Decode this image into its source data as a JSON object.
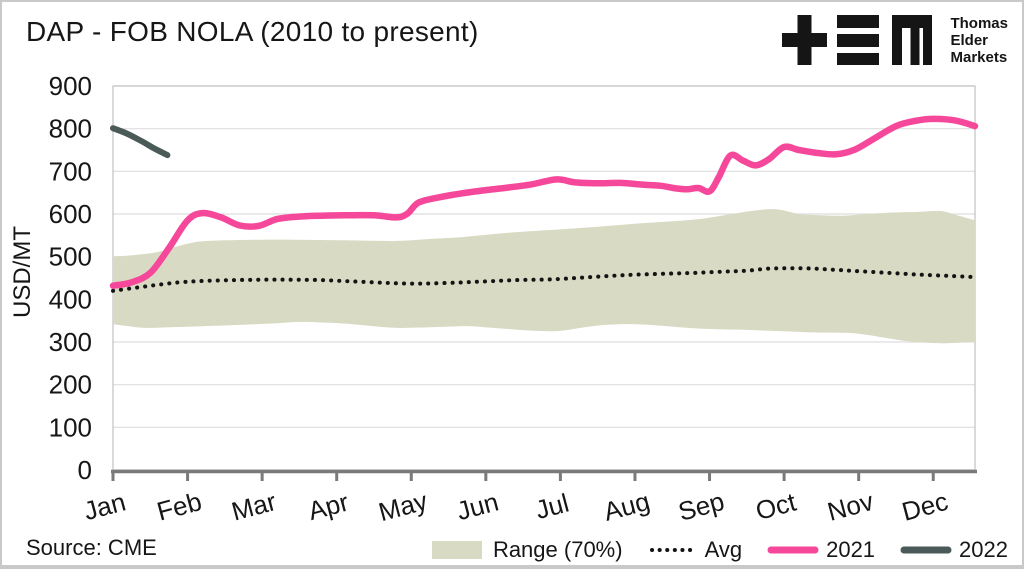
{
  "header": {
    "title": "DAP - FOB NOLA (2010 to present)"
  },
  "logo": {
    "lines": [
      "Thomas",
      "Elder",
      "Markets"
    ]
  },
  "footer": {
    "source": "Source: CME"
  },
  "chart_data": {
    "type": "line",
    "title": "DAP - FOB NOLA (2010 to present)",
    "xlabel": "",
    "ylabel": "USD/MT",
    "ylim": [
      0,
      900
    ],
    "yticks": [
      0,
      100,
      200,
      300,
      400,
      500,
      600,
      700,
      800,
      900
    ],
    "x_tick_labels": [
      "Jan",
      "Feb",
      "Mar",
      "Apr",
      "May",
      "Jun",
      "Jul",
      "Aug",
      "Sep",
      "Oct",
      "Nov",
      "Dec"
    ],
    "x_domain_months": [
      0,
      11.56
    ],
    "grid": "horizontal",
    "legend_position": "bottom",
    "colors": {
      "band": "#d9dac3",
      "avg": "#141414",
      "y2021": "#f6489b",
      "y2022": "#4a5a58",
      "gridline": "#dedede",
      "plot_border": "#c6c6c6",
      "axis": "#7a7a7a"
    },
    "series": [
      {
        "name": "Range (70%)",
        "type": "band",
        "color": "#d9dac3",
        "top": [
          [
            0,
            500
          ],
          [
            0.3,
            504
          ],
          [
            0.6,
            511
          ],
          [
            0.9,
            526
          ],
          [
            1.2,
            536
          ],
          [
            1.7,
            539
          ],
          [
            2.2,
            540
          ],
          [
            2.8,
            539
          ],
          [
            3.3,
            538
          ],
          [
            3.8,
            537
          ],
          [
            4.3,
            542
          ],
          [
            4.7,
            546
          ],
          [
            5.3,
            556
          ],
          [
            6.0,
            564
          ],
          [
            6.5,
            570
          ],
          [
            7.0,
            577
          ],
          [
            7.5,
            583
          ],
          [
            7.9,
            589
          ],
          [
            8.3,
            600
          ],
          [
            8.6,
            608
          ],
          [
            8.9,
            611
          ],
          [
            9.2,
            600
          ],
          [
            9.5,
            597
          ],
          [
            9.8,
            596
          ],
          [
            10.1,
            600
          ],
          [
            10.4,
            603
          ],
          [
            10.8,
            605
          ],
          [
            11.1,
            607
          ],
          [
            11.3,
            598
          ],
          [
            11.56,
            585
          ]
        ],
        "bottom": [
          [
            0,
            342
          ],
          [
            0.3,
            335
          ],
          [
            0.5,
            333
          ],
          [
            0.8,
            335
          ],
          [
            1.2,
            337
          ],
          [
            1.7,
            340
          ],
          [
            2.2,
            344
          ],
          [
            2.5,
            347
          ],
          [
            2.9,
            345
          ],
          [
            3.2,
            342
          ],
          [
            3.5,
            337
          ],
          [
            3.8,
            333
          ],
          [
            4.1,
            334
          ],
          [
            4.5,
            336
          ],
          [
            4.8,
            337
          ],
          [
            5.1,
            333
          ],
          [
            5.4,
            329
          ],
          [
            5.7,
            326
          ],
          [
            6.0,
            326
          ],
          [
            6.3,
            334
          ],
          [
            6.6,
            340
          ],
          [
            6.9,
            342
          ],
          [
            7.2,
            340
          ],
          [
            7.5,
            336
          ],
          [
            7.8,
            332
          ],
          [
            8.1,
            330
          ],
          [
            8.4,
            329
          ],
          [
            8.7,
            327
          ],
          [
            9.0,
            325
          ],
          [
            9.3,
            323
          ],
          [
            9.6,
            322
          ],
          [
            9.9,
            321
          ],
          [
            10.1,
            317
          ],
          [
            10.35,
            310
          ],
          [
            10.6,
            303
          ],
          [
            10.85,
            299
          ],
          [
            11.1,
            297
          ],
          [
            11.3,
            298
          ],
          [
            11.56,
            301
          ]
        ]
      },
      {
        "name": "Avg",
        "type": "dotted-line",
        "color": "#141414",
        "points": [
          [
            0,
            420
          ],
          [
            0.3,
            427
          ],
          [
            0.6,
            434
          ],
          [
            0.9,
            440
          ],
          [
            1.2,
            443
          ],
          [
            1.6,
            445
          ],
          [
            2.0,
            446
          ],
          [
            2.4,
            446
          ],
          [
            2.8,
            445
          ],
          [
            3.2,
            442
          ],
          [
            3.6,
            439
          ],
          [
            3.9,
            437
          ],
          [
            4.2,
            437
          ],
          [
            4.6,
            439
          ],
          [
            5.0,
            442
          ],
          [
            5.4,
            445
          ],
          [
            5.9,
            447
          ],
          [
            6.4,
            452
          ],
          [
            6.9,
            457
          ],
          [
            7.4,
            460
          ],
          [
            7.8,
            462
          ],
          [
            8.2,
            465
          ],
          [
            8.5,
            467
          ],
          [
            8.8,
            472
          ],
          [
            9.1,
            473
          ],
          [
            9.4,
            472
          ],
          [
            9.7,
            469
          ],
          [
            10.0,
            466
          ],
          [
            10.4,
            462
          ],
          [
            10.8,
            458
          ],
          [
            11.2,
            455
          ],
          [
            11.56,
            452
          ]
        ]
      },
      {
        "name": "2021",
        "type": "line",
        "color": "#f6489b",
        "points": [
          [
            0,
            432
          ],
          [
            0.25,
            440
          ],
          [
            0.5,
            462
          ],
          [
            0.75,
            520
          ],
          [
            1.0,
            585
          ],
          [
            1.2,
            602
          ],
          [
            1.45,
            592
          ],
          [
            1.7,
            573
          ],
          [
            1.95,
            572
          ],
          [
            2.2,
            588
          ],
          [
            2.5,
            594
          ],
          [
            2.8,
            596
          ],
          [
            3.1,
            597
          ],
          [
            3.5,
            597
          ],
          [
            3.8,
            592
          ],
          [
            3.95,
            601
          ],
          [
            4.1,
            627
          ],
          [
            4.4,
            640
          ],
          [
            4.7,
            649
          ],
          [
            5.0,
            656
          ],
          [
            5.3,
            662
          ],
          [
            5.6,
            669
          ],
          [
            5.95,
            681
          ],
          [
            6.2,
            674
          ],
          [
            6.5,
            672
          ],
          [
            6.8,
            673
          ],
          [
            7.1,
            669
          ],
          [
            7.35,
            666
          ],
          [
            7.55,
            660
          ],
          [
            7.7,
            658
          ],
          [
            7.85,
            661
          ],
          [
            8.0,
            653
          ],
          [
            8.12,
            685
          ],
          [
            8.28,
            737
          ],
          [
            8.45,
            725
          ],
          [
            8.62,
            714
          ],
          [
            8.8,
            729
          ],
          [
            9.0,
            757
          ],
          [
            9.2,
            750
          ],
          [
            9.45,
            743
          ],
          [
            9.7,
            740
          ],
          [
            9.95,
            751
          ],
          [
            10.2,
            776
          ],
          [
            10.5,
            806
          ],
          [
            10.75,
            818
          ],
          [
            11.0,
            823
          ],
          [
            11.3,
            819
          ],
          [
            11.56,
            806
          ]
        ]
      },
      {
        "name": "2022",
        "type": "line",
        "color": "#4a5a58",
        "points": [
          [
            0,
            801
          ],
          [
            0.18,
            789
          ],
          [
            0.38,
            771
          ],
          [
            0.55,
            754
          ],
          [
            0.73,
            738
          ]
        ]
      }
    ]
  }
}
